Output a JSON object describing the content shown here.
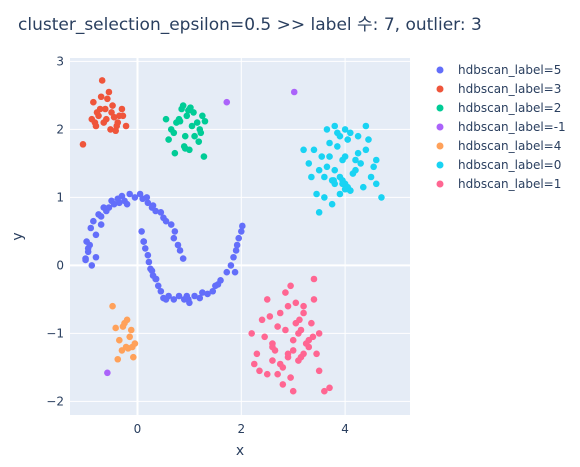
{
  "chart_data": {
    "type": "scatter",
    "title": "cluster_selection_epsilon=0.5 >> label 수: 7, outlier: 3",
    "xlabel": "x",
    "ylabel": "y",
    "xlim": [
      -1.3,
      5.25
    ],
    "ylim": [
      -2.2,
      3.05
    ],
    "x_ticks": [
      0,
      2,
      4
    ],
    "y_ticks": [
      -2,
      -1,
      0,
      1,
      2,
      3
    ],
    "grid": true,
    "legend_position": "right",
    "series": [
      {
        "name": "hdbscan_label=5",
        "color": "#636efa",
        "x": [
          -1.0,
          -0.95,
          -0.98,
          -0.9,
          -0.85,
          -0.92,
          -0.8,
          -0.75,
          -0.7,
          -0.6,
          -0.55,
          -0.5,
          -0.45,
          -0.38,
          -0.3,
          -0.25,
          -0.15,
          -0.05,
          0.05,
          0.1,
          0.2,
          0.3,
          0.35,
          0.45,
          0.5,
          0.55,
          0.65,
          0.72,
          0.7,
          0.78,
          0.82,
          0.88,
          -0.88,
          -0.8,
          -1.0,
          -0.95,
          -0.7,
          -0.65,
          -0.35,
          -0.2,
          0.18,
          0.28,
          0.08,
          0.12,
          0.15,
          0.2,
          0.22,
          0.25,
          0.3,
          0.35,
          0.4,
          0.45,
          0.5,
          0.55,
          0.6,
          0.7,
          0.8,
          0.9,
          1.0,
          1.1,
          1.2,
          1.35,
          1.45,
          1.5,
          1.6,
          1.72,
          1.8,
          1.85,
          1.9,
          1.92,
          1.95,
          2.0,
          2.02,
          1.88,
          0.12,
          0.28,
          0.36,
          0.95,
          1.25,
          1.55,
          0.98
        ],
        "y": [
          0.1,
          0.2,
          0.35,
          0.55,
          0.65,
          0.3,
          0.45,
          0.75,
          0.72,
          0.8,
          0.85,
          0.95,
          0.9,
          0.98,
          1.02,
          0.95,
          1.05,
          1.0,
          1.05,
          0.98,
          0.92,
          0.88,
          0.8,
          0.78,
          0.7,
          0.65,
          0.6,
          0.5,
          0.4,
          0.3,
          0.22,
          0.1,
          0.0,
          0.12,
          0.08,
          0.25,
          0.6,
          0.85,
          0.92,
          0.9,
          1.0,
          0.85,
          0.5,
          0.35,
          0.25,
          0.15,
          0.05,
          -0.05,
          -0.15,
          -0.2,
          -0.3,
          -0.38,
          -0.48,
          -0.5,
          -0.45,
          -0.5,
          -0.45,
          -0.5,
          -0.55,
          -0.45,
          -0.48,
          -0.42,
          -0.38,
          -0.3,
          -0.22,
          -0.1,
          0.0,
          0.12,
          0.22,
          0.3,
          0.4,
          0.5,
          0.58,
          -0.1,
          0.35,
          -0.08,
          -0.2,
          -0.45,
          -0.4,
          -0.28,
          -0.5
        ]
      },
      {
        "name": "hdbscan_label=3",
        "color": "#ef553b",
        "x": [
          -0.82,
          -0.75,
          -0.6,
          -0.5,
          -0.4,
          -0.28,
          -0.85,
          -0.72,
          -0.58,
          -0.48,
          -0.35,
          -0.22,
          -0.88,
          -0.78,
          -0.65,
          -0.52,
          -0.42,
          -0.3,
          -1.05,
          -0.68,
          -0.55,
          -0.38,
          -0.8,
          -0.45,
          -0.62,
          -0.7
        ],
        "y": [
          2.1,
          2.2,
          2.15,
          2.25,
          2.05,
          2.2,
          2.4,
          2.3,
          2.45,
          2.35,
          2.2,
          2.05,
          2.15,
          2.25,
          2.1,
          2.0,
          1.98,
          2.3,
          1.78,
          2.72,
          2.55,
          2.1,
          2.05,
          2.18,
          2.3,
          2.48
        ]
      },
      {
        "name": "hdbscan_label=2",
        "color": "#00cc96",
        "x": [
          0.55,
          0.65,
          0.75,
          0.85,
          0.95,
          1.05,
          1.15,
          1.25,
          0.6,
          0.7,
          0.8,
          0.9,
          1.0,
          1.1,
          1.2,
          0.72,
          0.88,
          0.98,
          1.08,
          1.18,
          0.92,
          0.82,
          1.28,
          1.3,
          1.22,
          1.02,
          0.92
        ],
        "y": [
          2.15,
          2.0,
          2.1,
          2.3,
          2.2,
          2.05,
          2.1,
          2.2,
          1.85,
          1.95,
          2.15,
          1.75,
          1.7,
          1.9,
          2.0,
          1.65,
          2.35,
          2.28,
          2.25,
          1.82,
          1.72,
          2.12,
          1.6,
          2.12,
          1.95,
          2.32,
          1.9
        ]
      },
      {
        "name": "hdbscan_label=-1",
        "color": "#ab63fa",
        "x": [
          1.72,
          3.02,
          -0.58
        ],
        "y": [
          2.4,
          2.55,
          -1.58
        ]
      },
      {
        "name": "hdbscan_label=4",
        "color": "#ffa15a",
        "x": [
          -0.48,
          -0.42,
          -0.35,
          -0.25,
          -0.2,
          -0.15,
          -0.1,
          -0.05,
          -0.3,
          -0.38,
          -0.22,
          -0.12,
          -0.08,
          -0.28,
          -0.18
        ],
        "y": [
          -0.6,
          -0.92,
          -1.1,
          -0.85,
          -0.8,
          -1.05,
          -1.2,
          -1.15,
          -1.25,
          -1.38,
          -1.2,
          -0.95,
          -1.35,
          -0.9,
          -1.22
        ]
      },
      {
        "name": "hdbscan_label=0",
        "color": "#19d3f3",
        "x": [
          3.3,
          3.4,
          3.5,
          3.6,
          3.7,
          3.8,
          3.9,
          4.0,
          4.1,
          4.2,
          4.3,
          4.4,
          4.5,
          4.6,
          4.7,
          3.35,
          3.45,
          3.55,
          3.65,
          3.75,
          3.85,
          3.95,
          4.05,
          4.15,
          4.25,
          4.35,
          4.45,
          4.55,
          3.6,
          3.7,
          3.8,
          3.9,
          4.0,
          4.1,
          4.2,
          3.75,
          3.85,
          3.95,
          4.05,
          3.9,
          4.0,
          3.8,
          4.1,
          3.5,
          4.4,
          3.65,
          4.25,
          3.95,
          4.0,
          3.2,
          4.6,
          3.78
        ],
        "y": [
          1.5,
          1.7,
          1.4,
          1.3,
          1.8,
          1.2,
          1.9,
          1.6,
          1.1,
          1.4,
          1.5,
          1.7,
          1.3,
          1.2,
          1.0,
          1.3,
          1.05,
          1.6,
          1.45,
          1.25,
          1.75,
          1.55,
          1.85,
          1.35,
          1.65,
          1.15,
          1.85,
          1.45,
          1.0,
          1.6,
          1.4,
          1.3,
          1.2,
          1.1,
          1.55,
          0.9,
          1.95,
          1.25,
          1.15,
          1.05,
          2.0,
          2.05,
          1.95,
          0.78,
          2.05,
          2.0,
          1.9,
          1.2,
          1.12,
          1.7,
          1.55,
          1.25
        ]
      },
      {
        "name": "hdbscan_label=1",
        "color": "#ff6692",
        "x": [
          2.2,
          2.3,
          2.4,
          2.5,
          2.6,
          2.7,
          2.8,
          2.9,
          3.0,
          3.1,
          3.2,
          3.3,
          3.4,
          3.5,
          3.6,
          2.35,
          2.45,
          2.55,
          2.65,
          2.75,
          2.85,
          2.95,
          3.05,
          3.15,
          3.25,
          3.35,
          3.45,
          2.6,
          2.7,
          2.8,
          2.9,
          3.0,
          3.1,
          3.2,
          3.3,
          2.85,
          2.95,
          3.05,
          3.15,
          2.75,
          3.4,
          3.5,
          2.5,
          3.7,
          2.25,
          3.0,
          3.2,
          2.9,
          3.12,
          2.6,
          3.38
        ],
        "y": [
          -1.0,
          -1.3,
          -0.8,
          -1.6,
          -1.2,
          -0.9,
          -1.5,
          -0.6,
          -1.1,
          -1.4,
          -0.7,
          -1.2,
          -0.5,
          -1.0,
          -1.85,
          -1.55,
          -1.05,
          -0.75,
          -1.25,
          -1.45,
          -0.95,
          -1.65,
          -0.55,
          -1.35,
          -1.15,
          -0.85,
          -1.3,
          -1.4,
          -1.6,
          -1.75,
          -1.35,
          -1.25,
          -1.0,
          -1.3,
          -1.1,
          -0.4,
          -0.3,
          -0.85,
          -0.95,
          -0.7,
          -0.2,
          -1.55,
          -0.5,
          -1.8,
          -1.45,
          -1.85,
          -0.6,
          -1.3,
          -0.8,
          -1.15,
          -1.05
        ]
      }
    ]
  }
}
